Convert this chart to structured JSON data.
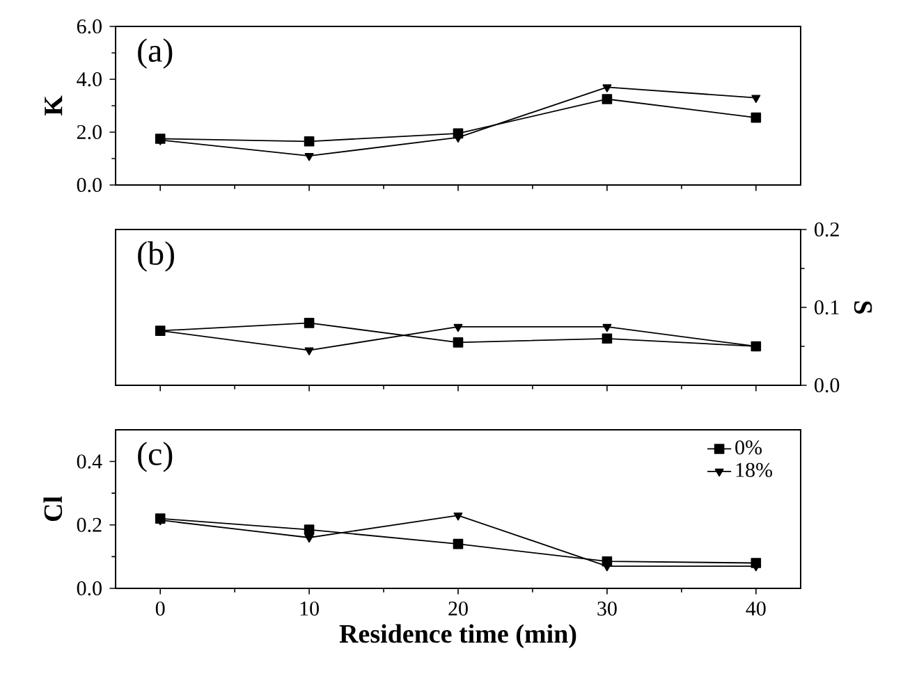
{
  "chart_data": [
    {
      "type": "line",
      "ylabel": "K",
      "annotations": [
        "(a)"
      ],
      "x": [
        0,
        10,
        20,
        30,
        40
      ],
      "xlim": [
        -3,
        43
      ],
      "ylim": [
        0,
        6
      ],
      "yticks": [
        {
          "value": 0,
          "label": "0.0"
        },
        {
          "value": 2,
          "label": "2.0"
        },
        {
          "value": 4,
          "label": "4.0"
        },
        {
          "value": 6,
          "label": "6.0"
        }
      ],
      "tick_labels": "y",
      "grid": false,
      "legend": false,
      "series": [
        {
          "color": "#000000",
          "marker": "square",
          "values": [
            1.75,
            1.65,
            1.95,
            3.25,
            2.55
          ]
        },
        {
          "color": "#000000",
          "marker": "triangle",
          "values": [
            1.7,
            1.1,
            1.8,
            3.7,
            3.3
          ]
        }
      ]
    },
    {
      "type": "line",
      "y2label": "S",
      "annotations": [
        "(b)"
      ],
      "x": [
        0,
        10,
        20,
        30,
        40
      ],
      "xlim": [
        -3,
        43
      ],
      "y2lim": [
        0,
        0.2
      ],
      "y2ticks": [
        {
          "value": 0,
          "label": "0.0"
        },
        0.1,
        0.2
      ],
      "tick_labels": "y2",
      "grid": false,
      "legend": false,
      "series": [
        {
          "color": "#000000",
          "marker": "square",
          "axis": "y2",
          "values": [
            0.07,
            0.08,
            0.055,
            0.06,
            0.05
          ]
        },
        {
          "color": "#000000",
          "marker": "triangle",
          "axis": "y2",
          "values": [
            0.07,
            0.045,
            0.075,
            0.075,
            0.05
          ]
        }
      ]
    },
    {
      "type": "line",
      "xlabel": "Residence time (min)",
      "ylabel": "Cl",
      "annotations": [
        "(c)"
      ],
      "x": [
        0,
        10,
        20,
        30,
        40
      ],
      "xlim": [
        -3,
        43
      ],
      "xticks": [
        0,
        10,
        20,
        30,
        40
      ],
      "ylim": [
        0,
        0.5
      ],
      "yticks": [
        {
          "value": 0,
          "label": "0.0"
        },
        0.2,
        0.4
      ],
      "grid": false,
      "legend": "top right",
      "series": [
        {
          "name": "0%",
          "color": "#000000",
          "marker": "square",
          "values": [
            0.22,
            0.185,
            0.14,
            0.085,
            0.08
          ]
        },
        {
          "name": "18%",
          "color": "#000000",
          "marker": "triangle",
          "values": [
            0.215,
            0.16,
            0.23,
            0.07,
            0.07
          ]
        }
      ]
    }
  ]
}
